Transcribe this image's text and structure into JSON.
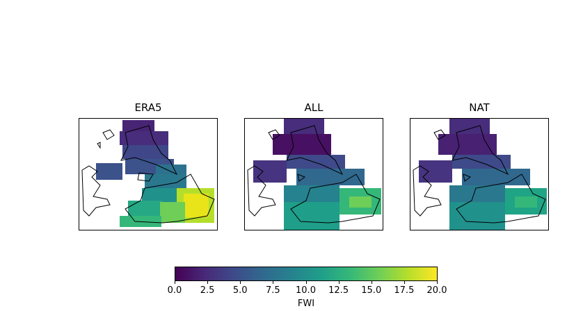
{
  "panels": [
    {
      "title": "ERA5"
    },
    {
      "title": "ALL"
    },
    {
      "title": "NAT"
    }
  ],
  "colorbar": {
    "label": "FWI",
    "ticks": [
      "0.0",
      "2.5",
      "5.0",
      "7.5",
      "10.0",
      "12.5",
      "15.0",
      "17.5",
      "20.0"
    ],
    "range": [
      0,
      20
    ],
    "colormap": "viridis"
  }
}
